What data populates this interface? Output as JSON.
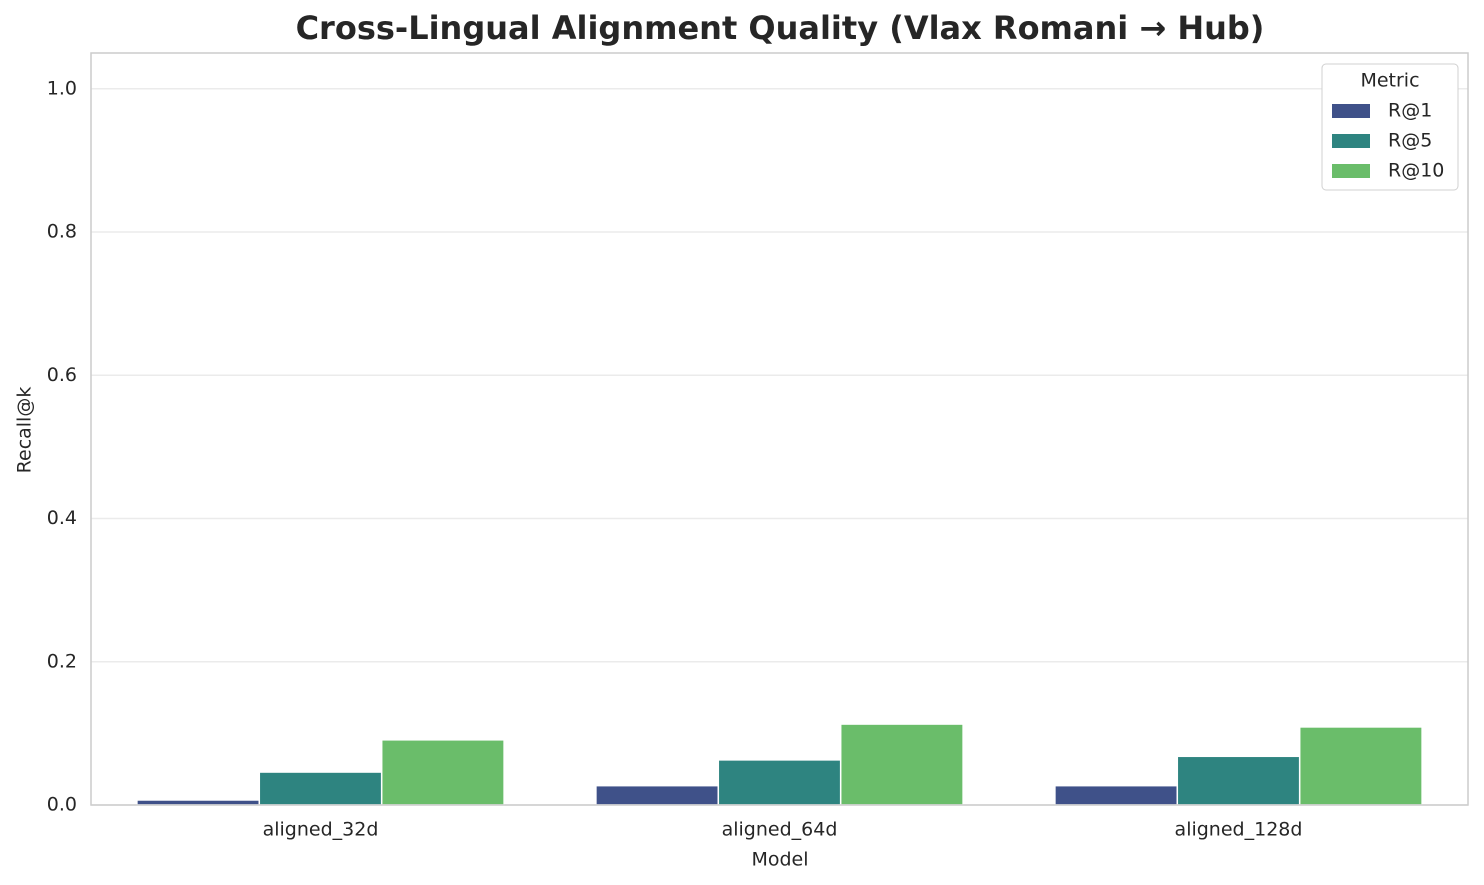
{
  "chart_data": {
    "type": "bar",
    "title": "Cross-Lingual Alignment Quality (Vlax Romani → Hub)",
    "x_label": "Model",
    "y_label": "Recall@k",
    "categories": [
      "aligned_32d",
      "aligned_64d",
      "aligned_128d"
    ],
    "series": [
      {
        "name": "R@1",
        "color": "#3f5189",
        "values": [
          0.007,
          0.027,
          0.027
        ]
      },
      {
        "name": "R@5",
        "color": "#2e8480",
        "values": [
          0.046,
          0.063,
          0.068
        ]
      },
      {
        "name": "R@10",
        "color": "#6abd6a",
        "values": [
          0.091,
          0.113,
          0.109
        ]
      }
    ],
    "legend_title": "Metric",
    "legend_position": "upper-right",
    "ylim": [
      0,
      1.05
    ],
    "yticks": [
      {
        "value": 0,
        "label": "0.0"
      },
      0.2,
      0.4,
      0.6,
      0.8,
      {
        "value": 1,
        "label": "1.0"
      }
    ],
    "grid": true
  }
}
